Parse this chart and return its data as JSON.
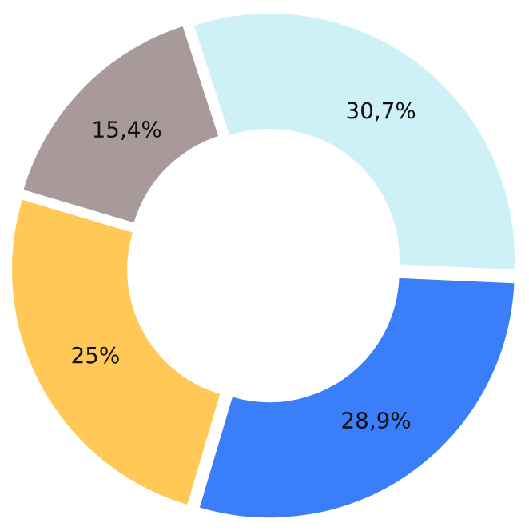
{
  "chart_data": {
    "type": "donut",
    "categories": [
      null,
      null,
      null,
      null
    ],
    "values": [
      30.7,
      28.9,
      25,
      15.4
    ],
    "value_labels": [
      "30,7%",
      "28,9%",
      "25%",
      "15,4%"
    ],
    "colors": [
      "#cdf1f7",
      "#3a7ff9",
      "#ffc857",
      "#a89a9b"
    ]
  }
}
